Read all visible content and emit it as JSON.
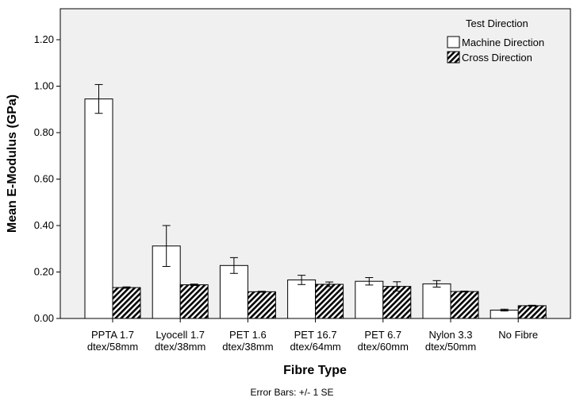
{
  "chart_data": {
    "type": "bar",
    "xlabel": "Fibre Type",
    "ylabel": "Mean E-Modulus (GPa)",
    "ylim": [
      0,
      1.3
    ],
    "yticks": [
      "0.00",
      "0.20",
      "0.40",
      "0.60",
      "0.80",
      "1.00",
      "1.20"
    ],
    "categories": [
      [
        "PPTA 1.7",
        "dtex/58mm"
      ],
      [
        "Lyocell 1.7",
        "dtex/38mm"
      ],
      [
        "PET 1.6",
        "dtex/38mm"
      ],
      [
        "PET 16.7",
        "dtex/64mm"
      ],
      [
        "PET 6.7",
        "dtex/60mm"
      ],
      [
        "Nylon 3.3",
        "dtex/50mm"
      ],
      [
        "No Fibre"
      ]
    ],
    "legend_title": "Test Direction",
    "legend_position": "top-right",
    "grid": false,
    "background_color": "#f0f0f0",
    "series": [
      {
        "name": "Machine Direction",
        "fill": "white",
        "values": [
          0.945,
          0.312,
          0.228,
          0.166,
          0.16,
          0.149,
          0.036
        ],
        "errors": [
          0.062,
          0.088,
          0.034,
          0.02,
          0.016,
          0.014,
          0.004
        ]
      },
      {
        "name": "Cross Direction",
        "fill": "hatched",
        "values": [
          0.133,
          0.145,
          0.115,
          0.147,
          0.138,
          0.116,
          0.055
        ],
        "errors": [
          0.003,
          0.003,
          0.002,
          0.01,
          0.02,
          0.002,
          0.002
        ]
      }
    ],
    "footnote": "Error Bars: +/- 1 SE"
  }
}
